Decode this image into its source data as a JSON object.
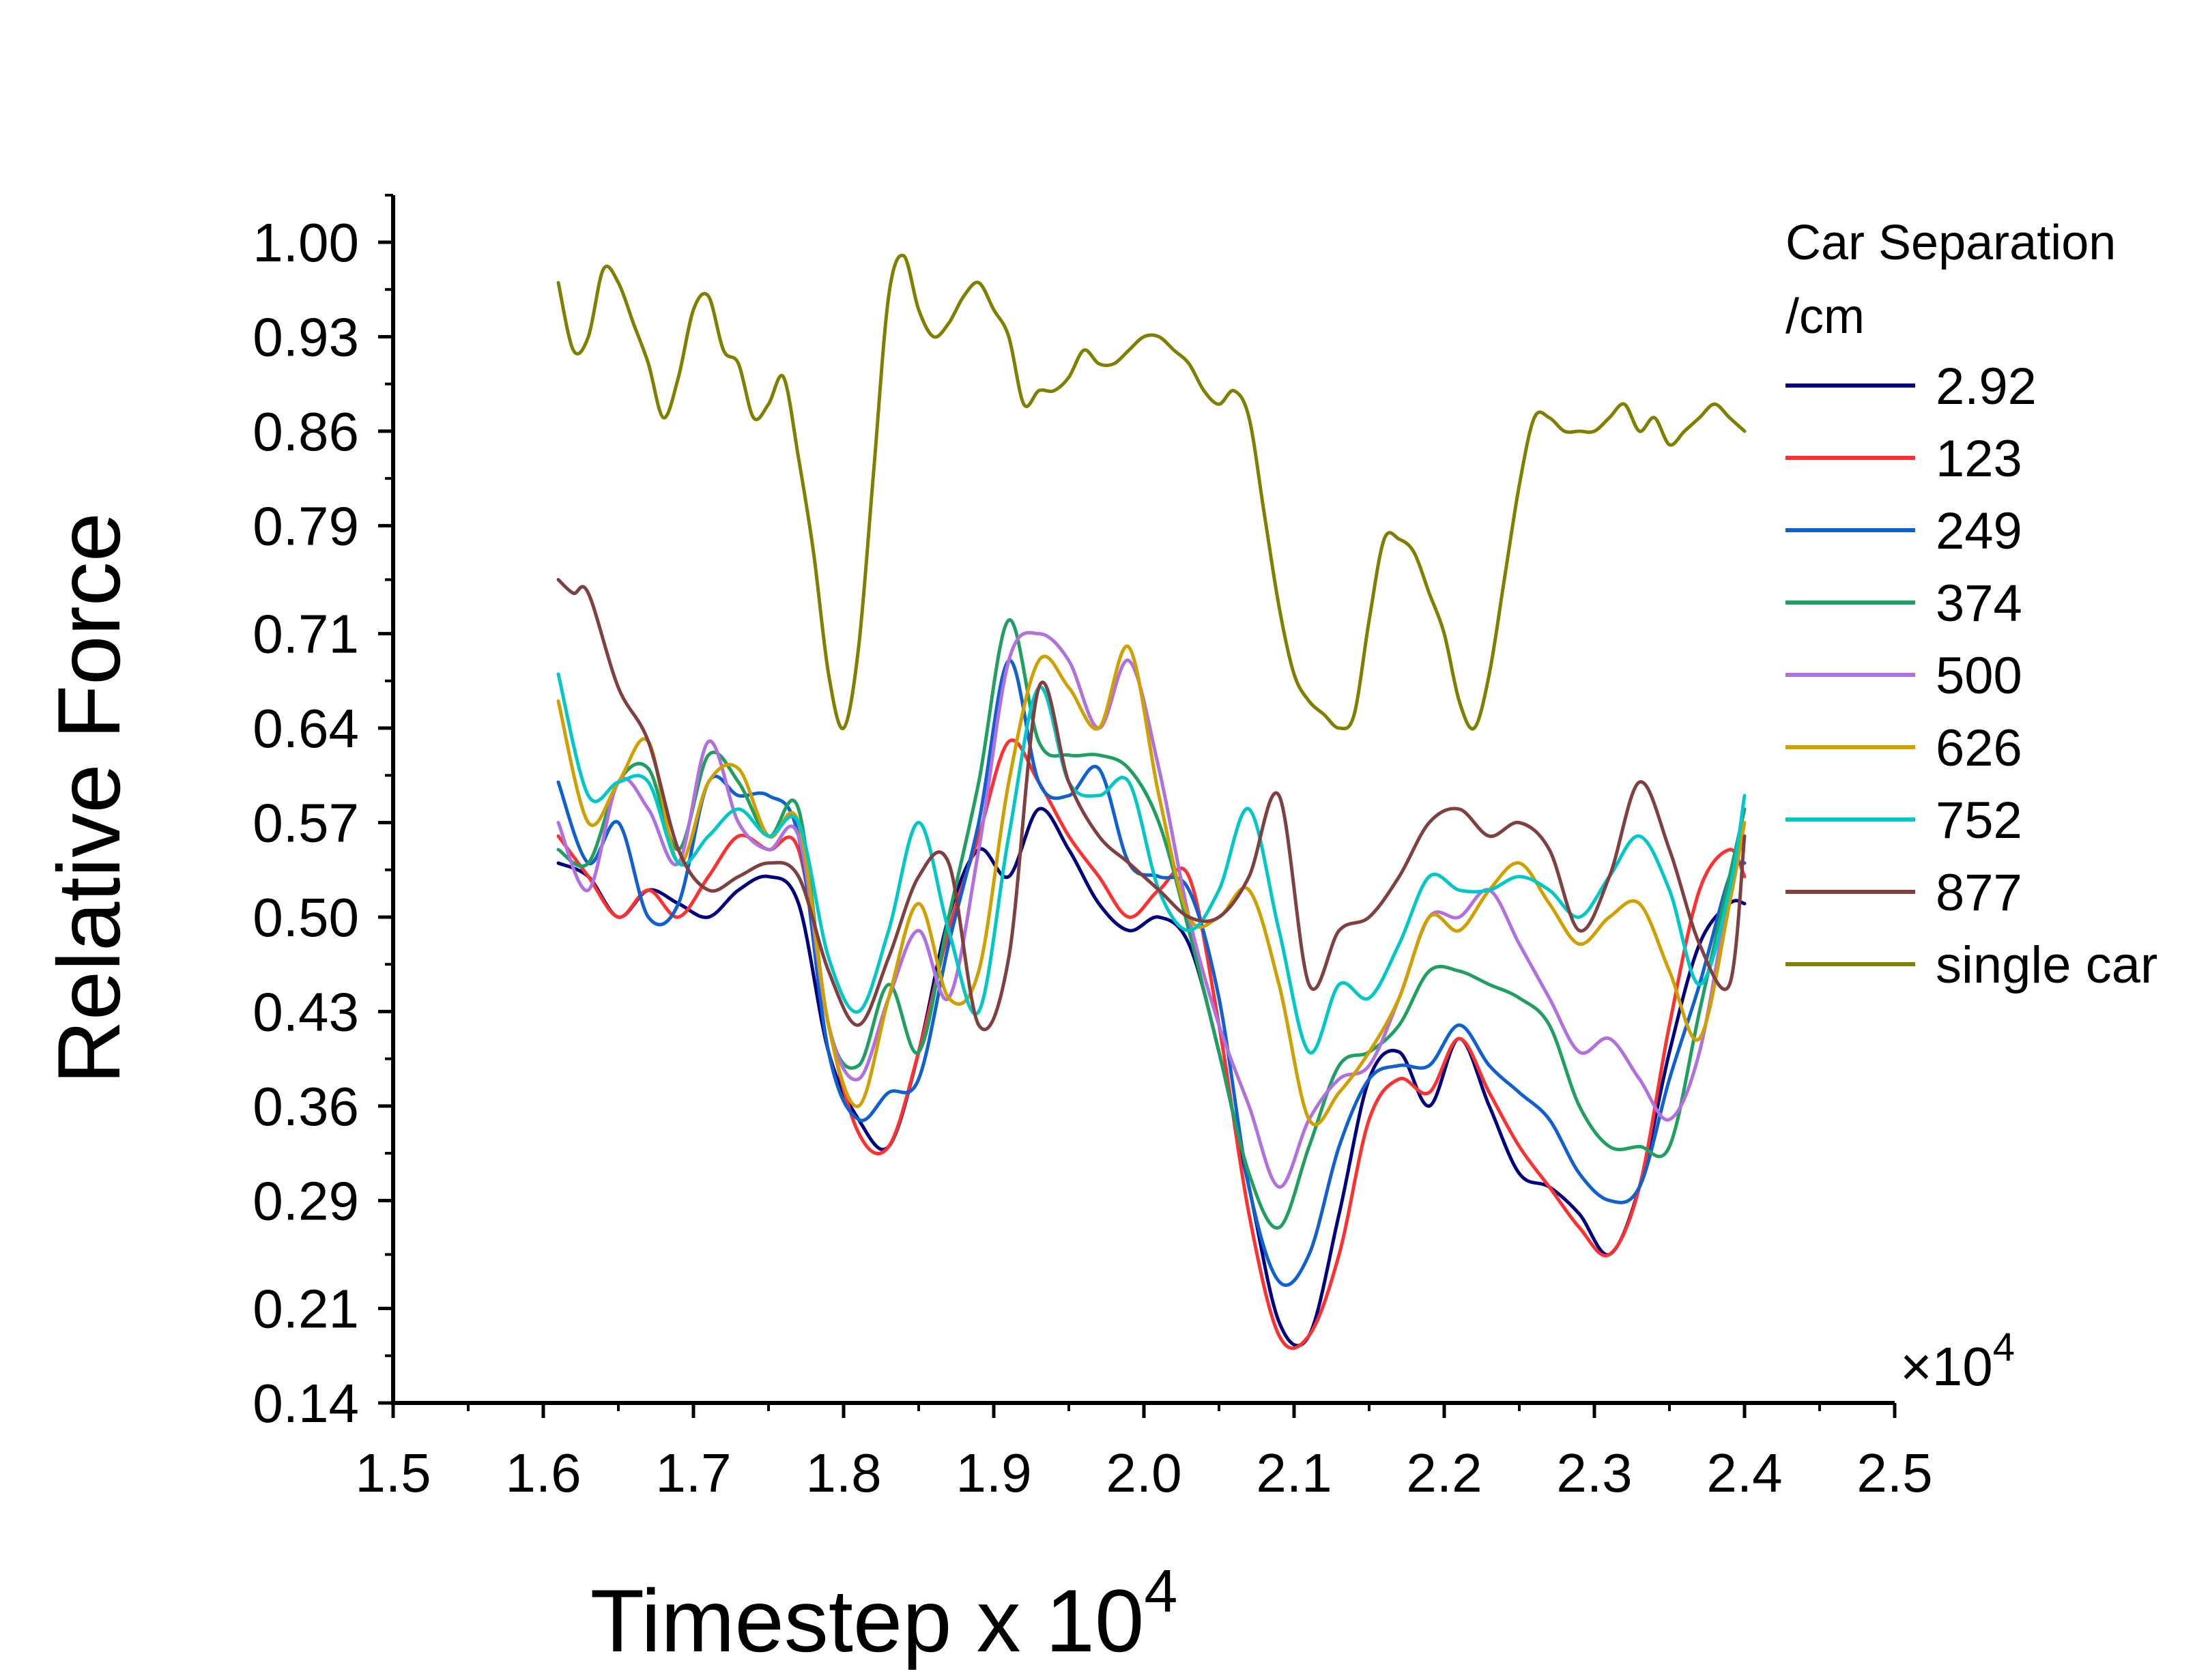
{
  "chart_data": {
    "type": "line",
    "xlabel": "Timestep x 10",
    "xlabel_superscript": "4",
    "ylabel": "Relative Force",
    "xlim": [
      1.5,
      2.5
    ],
    "ylim": [
      0.14,
      1.0
    ],
    "x_ticks": [
      "1.5",
      "1.6",
      "1.7",
      "1.8",
      "1.9",
      "2.0",
      "2.1",
      "2.2",
      "2.3",
      "2.4",
      "2.5"
    ],
    "y_ticks": [
      "0.14",
      "0.21",
      "0.29",
      "0.36",
      "0.43",
      "0.50",
      "0.57",
      "0.64",
      "0.71",
      "0.79",
      "0.86",
      "0.93",
      "1.00"
    ],
    "x_multiplier": "×10",
    "x_multiplier_exp": "4",
    "grid": false,
    "legend": {
      "title_line1": "Car Separation",
      "title_line2": "/cm",
      "placement": "right"
    },
    "series": [
      {
        "name": "2.92",
        "color": "#000080",
        "x": [
          1.61,
          1.63,
          1.65,
          1.67,
          1.69,
          1.71,
          1.73,
          1.75,
          1.77,
          1.79,
          1.81,
          1.83,
          1.85,
          1.87,
          1.89,
          1.91,
          1.93,
          1.95,
          1.97,
          1.99,
          2.01,
          2.03,
          2.05,
          2.07,
          2.09,
          2.11,
          2.13,
          2.15,
          2.17,
          2.19,
          2.21,
          2.23,
          2.25,
          2.27,
          2.29,
          2.31,
          2.33,
          2.35,
          2.37,
          2.39,
          2.4
        ],
        "y": [
          0.54,
          0.53,
          0.5,
          0.52,
          0.51,
          0.5,
          0.52,
          0.53,
          0.51,
          0.4,
          0.35,
          0.33,
          0.4,
          0.5,
          0.55,
          0.53,
          0.58,
          0.55,
          0.51,
          0.49,
          0.5,
          0.48,
          0.4,
          0.3,
          0.2,
          0.19,
          0.28,
          0.38,
          0.4,
          0.36,
          0.41,
          0.36,
          0.31,
          0.3,
          0.28,
          0.25,
          0.3,
          0.4,
          0.48,
          0.51,
          0.51
        ]
      },
      {
        "name": "123",
        "color": "#ff3030",
        "x": [
          1.61,
          1.63,
          1.65,
          1.67,
          1.69,
          1.71,
          1.73,
          1.75,
          1.77,
          1.79,
          1.81,
          1.83,
          1.85,
          1.87,
          1.89,
          1.91,
          1.93,
          1.95,
          1.97,
          1.99,
          2.01,
          2.03,
          2.05,
          2.07,
          2.09,
          2.11,
          2.13,
          2.15,
          2.17,
          2.19,
          2.21,
          2.23,
          2.25,
          2.27,
          2.29,
          2.31,
          2.33,
          2.35,
          2.37,
          2.39,
          2.4
        ],
        "y": [
          0.56,
          0.53,
          0.5,
          0.52,
          0.5,
          0.53,
          0.56,
          0.55,
          0.55,
          0.42,
          0.34,
          0.33,
          0.4,
          0.49,
          0.56,
          0.63,
          0.6,
          0.56,
          0.53,
          0.5,
          0.52,
          0.53,
          0.42,
          0.28,
          0.19,
          0.19,
          0.25,
          0.35,
          0.38,
          0.37,
          0.41,
          0.37,
          0.33,
          0.3,
          0.27,
          0.25,
          0.3,
          0.42,
          0.52,
          0.55,
          0.53
        ]
      },
      {
        "name": "249",
        "color": "#1060d0",
        "x": [
          1.61,
          1.63,
          1.65,
          1.67,
          1.69,
          1.71,
          1.73,
          1.75,
          1.77,
          1.79,
          1.81,
          1.83,
          1.85,
          1.87,
          1.89,
          1.91,
          1.93,
          1.95,
          1.97,
          1.99,
          2.01,
          2.03,
          2.05,
          2.07,
          2.09,
          2.11,
          2.13,
          2.15,
          2.17,
          2.19,
          2.21,
          2.23,
          2.25,
          2.27,
          2.29,
          2.31,
          2.33,
          2.35,
          2.37,
          2.39,
          2.4
        ],
        "y": [
          0.6,
          0.54,
          0.57,
          0.5,
          0.51,
          0.6,
          0.59,
          0.59,
          0.56,
          0.4,
          0.35,
          0.37,
          0.38,
          0.48,
          0.57,
          0.69,
          0.6,
          0.59,
          0.61,
          0.54,
          0.53,
          0.52,
          0.44,
          0.3,
          0.23,
          0.25,
          0.33,
          0.38,
          0.39,
          0.39,
          0.42,
          0.39,
          0.37,
          0.35,
          0.31,
          0.29,
          0.3,
          0.38,
          0.45,
          0.53,
          0.54
        ]
      },
      {
        "name": "374",
        "color": "#20a060",
        "x": [
          1.61,
          1.63,
          1.65,
          1.67,
          1.69,
          1.71,
          1.73,
          1.75,
          1.77,
          1.79,
          1.81,
          1.83,
          1.85,
          1.87,
          1.89,
          1.91,
          1.93,
          1.95,
          1.97,
          1.99,
          2.01,
          2.03,
          2.05,
          2.07,
          2.09,
          2.11,
          2.13,
          2.15,
          2.17,
          2.19,
          2.21,
          2.23,
          2.25,
          2.27,
          2.29,
          2.31,
          2.33,
          2.35,
          2.37,
          2.39,
          2.4
        ],
        "y": [
          0.55,
          0.54,
          0.6,
          0.61,
          0.55,
          0.62,
          0.6,
          0.56,
          0.58,
          0.42,
          0.39,
          0.45,
          0.4,
          0.5,
          0.6,
          0.72,
          0.63,
          0.62,
          0.62,
          0.61,
          0.57,
          0.49,
          0.4,
          0.31,
          0.27,
          0.33,
          0.39,
          0.4,
          0.42,
          0.46,
          0.46,
          0.45,
          0.44,
          0.42,
          0.36,
          0.33,
          0.33,
          0.33,
          0.43,
          0.53,
          0.58
        ]
      },
      {
        "name": "500",
        "color": "#b070e0",
        "x": [
          1.61,
          1.63,
          1.65,
          1.67,
          1.69,
          1.71,
          1.73,
          1.75,
          1.77,
          1.79,
          1.81,
          1.83,
          1.85,
          1.87,
          1.89,
          1.91,
          1.93,
          1.95,
          1.97,
          1.99,
          2.01,
          2.03,
          2.05,
          2.07,
          2.09,
          2.11,
          2.13,
          2.15,
          2.17,
          2.19,
          2.21,
          2.23,
          2.25,
          2.27,
          2.29,
          2.31,
          2.33,
          2.35,
          2.37,
          2.39,
          2.4
        ],
        "y": [
          0.57,
          0.52,
          0.6,
          0.58,
          0.54,
          0.63,
          0.57,
          0.55,
          0.56,
          0.42,
          0.38,
          0.44,
          0.49,
          0.44,
          0.55,
          0.69,
          0.71,
          0.69,
          0.64,
          0.69,
          0.61,
          0.5,
          0.42,
          0.36,
          0.3,
          0.35,
          0.38,
          0.39,
          0.44,
          0.5,
          0.5,
          0.52,
          0.48,
          0.44,
          0.4,
          0.41,
          0.38,
          0.35,
          0.4,
          0.52,
          0.56
        ]
      },
      {
        "name": "626",
        "color": "#d0a000",
        "x": [
          1.61,
          1.63,
          1.65,
          1.67,
          1.69,
          1.71,
          1.73,
          1.75,
          1.77,
          1.79,
          1.81,
          1.83,
          1.85,
          1.87,
          1.89,
          1.91,
          1.93,
          1.95,
          1.97,
          1.99,
          2.01,
          2.03,
          2.05,
          2.07,
          2.09,
          2.11,
          2.13,
          2.15,
          2.17,
          2.19,
          2.21,
          2.23,
          2.25,
          2.27,
          2.29,
          2.31,
          2.33,
          2.35,
          2.37,
          2.39,
          2.4
        ],
        "y": [
          0.66,
          0.57,
          0.6,
          0.63,
          0.54,
          0.6,
          0.61,
          0.56,
          0.57,
          0.42,
          0.36,
          0.44,
          0.51,
          0.44,
          0.46,
          0.6,
          0.69,
          0.67,
          0.64,
          0.7,
          0.59,
          0.5,
          0.5,
          0.52,
          0.45,
          0.35,
          0.37,
          0.4,
          0.44,
          0.5,
          0.49,
          0.52,
          0.54,
          0.51,
          0.48,
          0.5,
          0.51,
          0.46,
          0.41,
          0.51,
          0.57
        ]
      },
      {
        "name": "752",
        "color": "#00c8c8",
        "x": [
          1.61,
          1.63,
          1.65,
          1.67,
          1.69,
          1.71,
          1.73,
          1.75,
          1.77,
          1.79,
          1.81,
          1.83,
          1.85,
          1.87,
          1.89,
          1.91,
          1.93,
          1.95,
          1.97,
          1.99,
          2.01,
          2.03,
          2.05,
          2.07,
          2.09,
          2.11,
          2.13,
          2.15,
          2.17,
          2.19,
          2.21,
          2.23,
          2.25,
          2.27,
          2.29,
          2.31,
          2.33,
          2.35,
          2.37,
          2.39,
          2.4
        ],
        "y": [
          0.68,
          0.59,
          0.6,
          0.6,
          0.54,
          0.56,
          0.58,
          0.56,
          0.57,
          0.47,
          0.43,
          0.49,
          0.57,
          0.49,
          0.43,
          0.56,
          0.67,
          0.6,
          0.59,
          0.6,
          0.52,
          0.49,
          0.52,
          0.58,
          0.49,
          0.4,
          0.45,
          0.44,
          0.48,
          0.53,
          0.52,
          0.52,
          0.53,
          0.52,
          0.5,
          0.53,
          0.56,
          0.52,
          0.45,
          0.52,
          0.59
        ]
      },
      {
        "name": "877",
        "color": "#804040",
        "x": [
          1.61,
          1.62,
          1.63,
          1.65,
          1.67,
          1.69,
          1.71,
          1.73,
          1.75,
          1.77,
          1.79,
          1.81,
          1.83,
          1.85,
          1.87,
          1.89,
          1.91,
          1.93,
          1.95,
          1.97,
          1.99,
          2.01,
          2.03,
          2.05,
          2.07,
          2.09,
          2.11,
          2.13,
          2.15,
          2.17,
          2.19,
          2.21,
          2.23,
          2.25,
          2.27,
          2.29,
          2.31,
          2.33,
          2.35,
          2.37,
          2.39,
          2.4
        ],
        "y": [
          0.75,
          0.74,
          0.74,
          0.67,
          0.63,
          0.55,
          0.52,
          0.53,
          0.54,
          0.53,
          0.46,
          0.42,
          0.47,
          0.53,
          0.54,
          0.42,
          0.47,
          0.67,
          0.6,
          0.56,
          0.54,
          0.52,
          0.5,
          0.5,
          0.53,
          0.59,
          0.45,
          0.49,
          0.5,
          0.53,
          0.57,
          0.58,
          0.56,
          0.57,
          0.55,
          0.49,
          0.53,
          0.6,
          0.55,
          0.48,
          0.45,
          0.56
        ]
      },
      {
        "name": "single car",
        "color": "#808000",
        "x": [
          1.61,
          1.62,
          1.63,
          1.64,
          1.65,
          1.66,
          1.67,
          1.68,
          1.69,
          1.7,
          1.71,
          1.72,
          1.73,
          1.74,
          1.75,
          1.76,
          1.77,
          1.78,
          1.79,
          1.8,
          1.81,
          1.82,
          1.83,
          1.84,
          1.85,
          1.86,
          1.87,
          1.88,
          1.89,
          1.9,
          1.91,
          1.92,
          1.93,
          1.94,
          1.95,
          1.96,
          1.97,
          1.98,
          1.99,
          2.0,
          2.01,
          2.02,
          2.03,
          2.04,
          2.05,
          2.06,
          2.07,
          2.08,
          2.09,
          2.1,
          2.11,
          2.12,
          2.13,
          2.14,
          2.15,
          2.16,
          2.17,
          2.18,
          2.19,
          2.2,
          2.21,
          2.22,
          2.23,
          2.24,
          2.25,
          2.26,
          2.27,
          2.28,
          2.29,
          2.3,
          2.31,
          2.32,
          2.33,
          2.34,
          2.35,
          2.36,
          2.37,
          2.38,
          2.39,
          2.4
        ],
        "y": [
          0.97,
          0.92,
          0.93,
          0.98,
          0.97,
          0.94,
          0.91,
          0.87,
          0.9,
          0.95,
          0.96,
          0.92,
          0.91,
          0.87,
          0.88,
          0.9,
          0.84,
          0.77,
          0.68,
          0.64,
          0.7,
          0.83,
          0.96,
          0.99,
          0.95,
          0.93,
          0.94,
          0.96,
          0.97,
          0.95,
          0.93,
          0.88,
          0.89,
          0.89,
          0.9,
          0.92,
          0.91,
          0.91,
          0.92,
          0.93,
          0.93,
          0.92,
          0.91,
          0.89,
          0.88,
          0.89,
          0.87,
          0.8,
          0.73,
          0.68,
          0.66,
          0.65,
          0.64,
          0.65,
          0.72,
          0.78,
          0.78,
          0.77,
          0.74,
          0.71,
          0.66,
          0.64,
          0.68,
          0.75,
          0.82,
          0.87,
          0.87,
          0.86,
          0.86,
          0.86,
          0.87,
          0.88,
          0.86,
          0.87,
          0.85,
          0.86,
          0.87,
          0.88,
          0.87,
          0.86
        ]
      }
    ]
  }
}
